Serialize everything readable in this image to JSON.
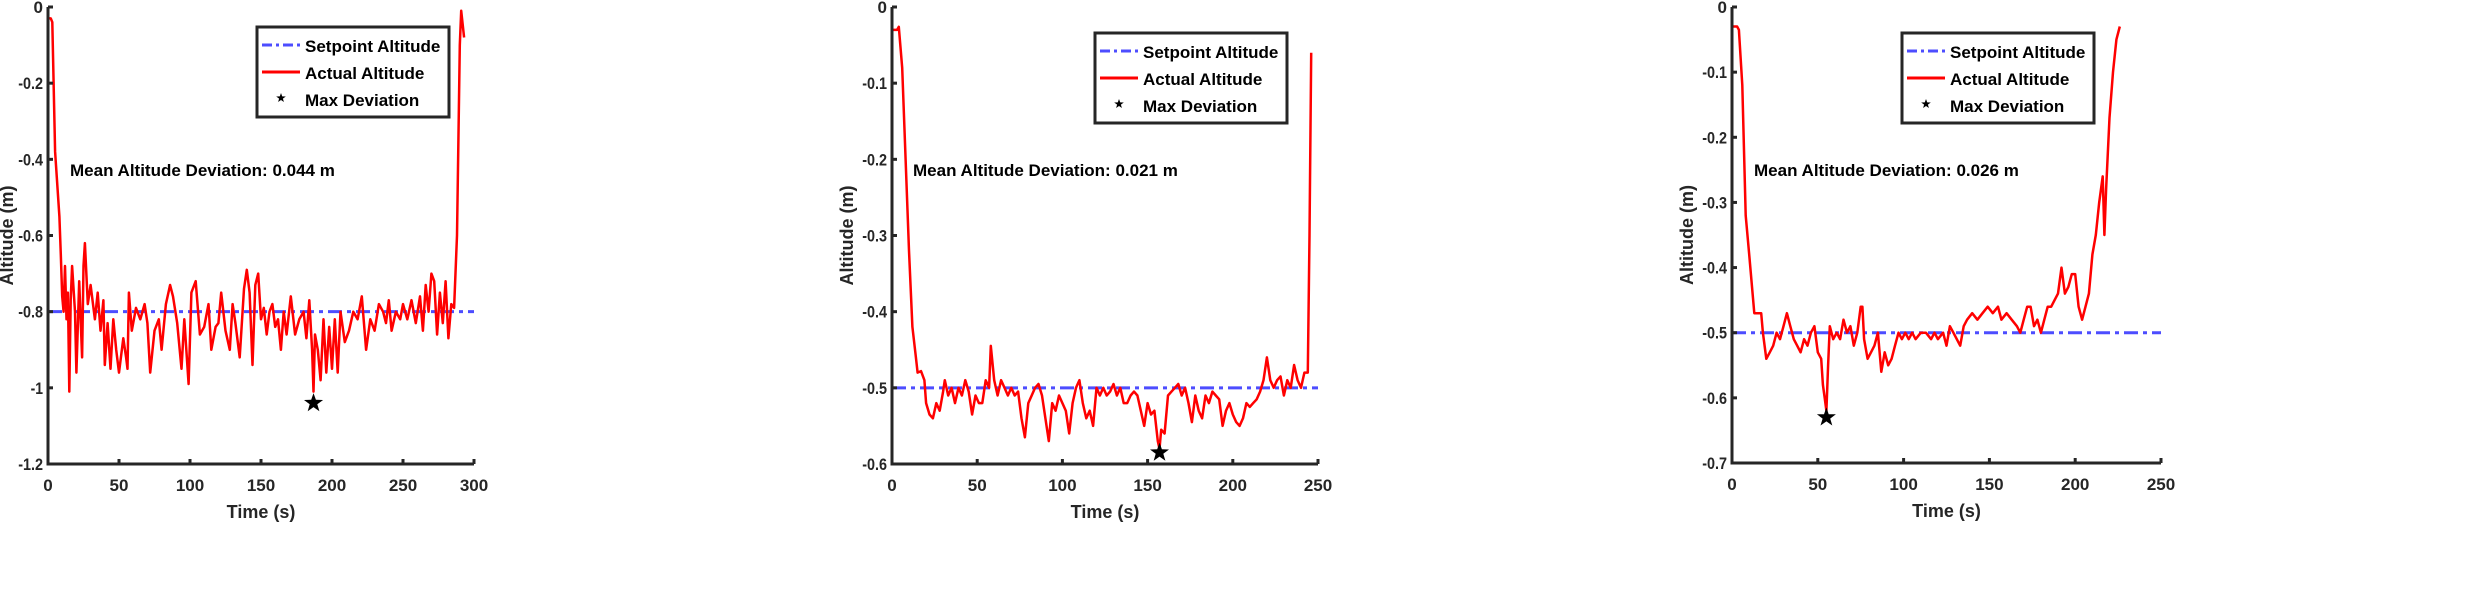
{
  "chart_data": [
    {
      "type": "line",
      "xlabel": "Time (s)",
      "ylabel": "Altitude (m)",
      "xlim": [
        0,
        300
      ],
      "ylim": [
        -1.2,
        0
      ],
      "xticks": [
        "0",
        "50",
        "100",
        "150",
        "200",
        "250",
        "300"
      ],
      "yticks": [
        "-1.2",
        "-1",
        "-0.8",
        "-0.6",
        "-0.4",
        "-0.2",
        "0"
      ],
      "legend_position": "top-right",
      "annotation": "Mean Altitude Deviation: 0.044 m",
      "series": [
        {
          "name": "Setpoint Altitude",
          "style": "dash-dot",
          "color": "#4d4dff",
          "value": -0.8
        },
        {
          "name": "Actual Altitude",
          "style": "solid",
          "color": "#ff0000",
          "x": [
            0,
            2,
            3,
            5,
            8,
            9,
            10,
            11,
            12,
            13,
            14,
            15,
            16,
            17,
            19,
            20,
            22,
            24,
            25,
            26,
            28,
            30,
            33,
            35,
            37,
            39,
            40,
            42,
            44,
            46,
            48,
            50,
            53,
            55,
            56,
            57,
            59,
            62,
            65,
            68,
            70,
            72,
            75,
            78,
            80,
            83,
            86,
            88,
            91,
            94,
            96,
            99,
            101,
            104,
            107,
            110,
            113,
            115,
            118,
            120,
            122,
            125,
            128,
            130,
            132,
            135,
            138,
            140,
            142,
            144,
            146,
            148,
            150,
            152,
            154,
            156,
            158,
            160,
            162,
            164,
            166,
            168,
            171,
            174,
            177,
            180,
            182,
            184,
            186,
            187,
            188,
            190,
            192,
            194,
            196,
            198,
            200,
            202,
            204,
            206,
            209,
            212,
            215,
            218,
            221,
            224,
            227,
            230,
            233,
            236,
            238,
            240,
            242,
            245,
            248,
            250,
            253,
            256,
            259,
            262,
            264,
            266,
            268,
            270,
            272,
            274,
            276,
            278,
            280,
            282,
            284,
            286,
            288,
            290,
            291,
            293
          ],
          "y": [
            -0.03,
            -0.03,
            -0.04,
            -0.38,
            -0.55,
            -0.65,
            -0.76,
            -0.8,
            -0.68,
            -0.82,
            -0.75,
            -1.01,
            -0.77,
            -0.68,
            -0.8,
            -0.96,
            -0.72,
            -0.92,
            -0.68,
            -0.62,
            -0.78,
            -0.73,
            -0.82,
            -0.75,
            -0.85,
            -0.77,
            -0.94,
            -0.83,
            -0.95,
            -0.82,
            -0.9,
            -0.96,
            -0.87,
            -0.92,
            -0.95,
            -0.75,
            -0.85,
            -0.79,
            -0.82,
            -0.78,
            -0.83,
            -0.96,
            -0.85,
            -0.82,
            -0.9,
            -0.78,
            -0.73,
            -0.76,
            -0.83,
            -0.95,
            -0.82,
            -0.99,
            -0.75,
            -0.72,
            -0.86,
            -0.84,
            -0.78,
            -0.9,
            -0.84,
            -0.83,
            -0.75,
            -0.85,
            -0.9,
            -0.78,
            -0.83,
            -0.92,
            -0.74,
            -0.69,
            -0.75,
            -0.94,
            -0.73,
            -0.7,
            -0.82,
            -0.79,
            -0.86,
            -0.8,
            -0.78,
            -0.84,
            -0.82,
            -0.9,
            -0.8,
            -0.86,
            -0.76,
            -0.86,
            -0.82,
            -0.8,
            -0.87,
            -0.77,
            -0.9,
            -1.01,
            -0.86,
            -0.9,
            -0.98,
            -0.82,
            -0.96,
            -0.84,
            -0.95,
            -0.82,
            -0.96,
            -0.8,
            -0.88,
            -0.85,
            -0.8,
            -0.82,
            -0.76,
            -0.9,
            -0.82,
            -0.85,
            -0.78,
            -0.8,
            -0.83,
            -0.77,
            -0.85,
            -0.8,
            -0.82,
            -0.78,
            -0.82,
            -0.77,
            -0.83,
            -0.76,
            -0.85,
            -0.73,
            -0.8,
            -0.7,
            -0.72,
            -0.86,
            -0.75,
            -0.83,
            -0.72,
            -0.87,
            -0.78,
            -0.79,
            -0.6,
            -0.1,
            -0.01,
            -0.08
          ]
        },
        {
          "name": "Max Deviation",
          "marker": "star",
          "color": "#000000",
          "x": [
            187
          ],
          "y": [
            -1.04
          ]
        }
      ]
    },
    {
      "type": "line",
      "xlabel": "Time (s)",
      "ylabel": "Altitude (m)",
      "xlim": [
        0,
        250
      ],
      "ylim": [
        -0.6,
        0
      ],
      "xticks": [
        "0",
        "50",
        "100",
        "150",
        "200",
        "250"
      ],
      "yticks": [
        "-0.6",
        "-0.5",
        "-0.4",
        "-0.3",
        "-0.2",
        "-0.1",
        "0"
      ],
      "legend_position": "top-right",
      "annotation": "Mean Altitude Deviation: 0.021 m",
      "series": [
        {
          "name": "Setpoint Altitude",
          "style": "dash-dot",
          "color": "#4d4dff",
          "value": -0.5
        },
        {
          "name": "Actual Altitude",
          "style": "solid",
          "color": "#ff0000",
          "x": [
            0,
            3,
            4,
            6,
            8,
            10,
            12,
            14,
            15,
            17,
            19,
            20,
            22,
            24,
            26,
            28,
            30,
            31,
            33,
            35,
            37,
            39,
            41,
            43,
            45,
            47,
            49,
            51,
            53,
            55,
            57,
            58,
            60,
            62,
            64,
            66,
            68,
            70,
            72,
            74,
            76,
            78,
            80,
            82,
            84,
            86,
            88,
            90,
            92,
            94,
            96,
            98,
            100,
            102,
            104,
            106,
            108,
            110,
            112,
            114,
            116,
            118,
            120,
            122,
            124,
            126,
            128,
            130,
            132,
            134,
            136,
            138,
            140,
            142,
            144,
            146,
            148,
            150,
            152,
            154,
            156,
            157,
            158,
            160,
            162,
            164,
            166,
            168,
            170,
            172,
            174,
            176,
            178,
            180,
            182,
            184,
            186,
            188,
            190,
            192,
            194,
            196,
            198,
            200,
            202,
            204,
            206,
            208,
            210,
            212,
            214,
            216,
            218,
            220,
            222,
            224,
            226,
            228,
            230,
            232,
            234,
            236,
            238,
            240,
            242,
            244,
            245,
            246
          ],
          "y": [
            -0.03,
            -0.03,
            -0.026,
            -0.08,
            -0.2,
            -0.32,
            -0.42,
            -0.46,
            -0.48,
            -0.478,
            -0.49,
            -0.52,
            -0.535,
            -0.54,
            -0.52,
            -0.53,
            -0.505,
            -0.49,
            -0.51,
            -0.5,
            -0.52,
            -0.5,
            -0.51,
            -0.49,
            -0.505,
            -0.535,
            -0.51,
            -0.52,
            -0.52,
            -0.49,
            -0.5,
            -0.445,
            -0.49,
            -0.51,
            -0.49,
            -0.5,
            -0.51,
            -0.5,
            -0.51,
            -0.505,
            -0.54,
            -0.565,
            -0.52,
            -0.51,
            -0.5,
            -0.495,
            -0.51,
            -0.54,
            -0.57,
            -0.52,
            -0.53,
            -0.51,
            -0.52,
            -0.53,
            -0.56,
            -0.52,
            -0.5,
            -0.49,
            -0.52,
            -0.54,
            -0.53,
            -0.55,
            -0.5,
            -0.51,
            -0.5,
            -0.51,
            -0.505,
            -0.495,
            -0.51,
            -0.5,
            -0.52,
            -0.52,
            -0.51,
            -0.505,
            -0.51,
            -0.53,
            -0.55,
            -0.52,
            -0.535,
            -0.53,
            -0.57,
            -0.58,
            -0.555,
            -0.56,
            -0.51,
            -0.505,
            -0.5,
            -0.495,
            -0.51,
            -0.5,
            -0.52,
            -0.545,
            -0.51,
            -0.53,
            -0.54,
            -0.51,
            -0.52,
            -0.505,
            -0.51,
            -0.515,
            -0.55,
            -0.53,
            -0.52,
            -0.535,
            -0.545,
            -0.55,
            -0.54,
            -0.52,
            -0.525,
            -0.52,
            -0.515,
            -0.505,
            -0.49,
            -0.46,
            -0.49,
            -0.5,
            -0.49,
            -0.485,
            -0.51,
            -0.49,
            -0.5,
            -0.47,
            -0.49,
            -0.5,
            -0.48,
            -0.48,
            -0.3,
            -0.06
          ]
        },
        {
          "name": "Max Deviation",
          "marker": "star",
          "color": "#000000",
          "x": [
            157
          ],
          "y": [
            -0.585
          ]
        }
      ]
    },
    {
      "type": "line",
      "xlabel": "Time (s)",
      "ylabel": "Altitude (m)",
      "xlim": [
        0,
        250
      ],
      "ylim": [
        -0.7,
        0
      ],
      "xticks": [
        "0",
        "50",
        "100",
        "150",
        "200",
        "250"
      ],
      "yticks": [
        "-0.7",
        "-0.6",
        "-0.5",
        "-0.4",
        "-0.3",
        "-0.2",
        "-0.1",
        "0"
      ],
      "legend_position": "top-right",
      "annotation": "Mean Altitude Deviation: 0.026 m",
      "series": [
        {
          "name": "Setpoint Altitude",
          "style": "dash-dot",
          "color": "#4d4dff",
          "value": -0.5
        },
        {
          "name": "Actual Altitude",
          "style": "solid",
          "color": "#ff0000",
          "x": [
            0,
            3,
            4,
            6,
            8,
            10,
            12,
            13,
            15,
            17,
            18,
            20,
            22,
            24,
            26,
            28,
            30,
            32,
            34,
            36,
            38,
            40,
            42,
            44,
            46,
            48,
            50,
            52,
            53,
            54,
            55,
            56,
            57,
            59,
            61,
            63,
            65,
            67,
            69,
            71,
            73,
            75,
            76,
            77,
            79,
            81,
            83,
            85,
            87,
            89,
            91,
            93,
            95,
            97,
            99,
            101,
            103,
            105,
            107,
            110,
            113,
            116,
            118,
            120,
            123,
            125,
            127,
            129,
            131,
            133,
            135,
            137,
            140,
            143,
            146,
            149,
            152,
            155,
            157,
            160,
            163,
            166,
            168,
            170,
            172,
            174,
            176,
            178,
            180,
            182,
            184,
            186,
            188,
            190,
            192,
            194,
            196,
            198,
            200,
            202,
            204,
            206,
            208,
            210,
            212,
            214,
            216,
            217,
            218,
            220,
            222,
            224,
            226
          ],
          "y": [
            -0.03,
            -0.03,
            -0.035,
            -0.12,
            -0.32,
            -0.38,
            -0.44,
            -0.47,
            -0.47,
            -0.47,
            -0.5,
            -0.54,
            -0.53,
            -0.52,
            -0.5,
            -0.51,
            -0.49,
            -0.47,
            -0.49,
            -0.51,
            -0.52,
            -0.53,
            -0.51,
            -0.52,
            -0.5,
            -0.49,
            -0.53,
            -0.54,
            -0.58,
            -0.6,
            -0.62,
            -0.55,
            -0.49,
            -0.51,
            -0.5,
            -0.51,
            -0.48,
            -0.5,
            -0.49,
            -0.52,
            -0.5,
            -0.46,
            -0.46,
            -0.51,
            -0.54,
            -0.53,
            -0.52,
            -0.5,
            -0.56,
            -0.53,
            -0.55,
            -0.54,
            -0.52,
            -0.5,
            -0.51,
            -0.5,
            -0.51,
            -0.5,
            -0.51,
            -0.5,
            -0.5,
            -0.51,
            -0.5,
            -0.51,
            -0.5,
            -0.52,
            -0.49,
            -0.5,
            -0.51,
            -0.52,
            -0.49,
            -0.48,
            -0.47,
            -0.48,
            -0.47,
            -0.46,
            -0.47,
            -0.46,
            -0.48,
            -0.47,
            -0.48,
            -0.49,
            -0.5,
            -0.48,
            -0.46,
            -0.46,
            -0.49,
            -0.48,
            -0.5,
            -0.48,
            -0.46,
            -0.46,
            -0.45,
            -0.44,
            -0.4,
            -0.44,
            -0.43,
            -0.41,
            -0.41,
            -0.46,
            -0.48,
            -0.46,
            -0.44,
            -0.38,
            -0.35,
            -0.3,
            -0.26,
            -0.35,
            -0.28,
            -0.17,
            -0.1,
            -0.05,
            -0.03
          ]
        },
        {
          "name": "Max Deviation",
          "marker": "star",
          "color": "#000000",
          "x": [
            55
          ],
          "y": [
            -0.63
          ]
        }
      ]
    }
  ]
}
